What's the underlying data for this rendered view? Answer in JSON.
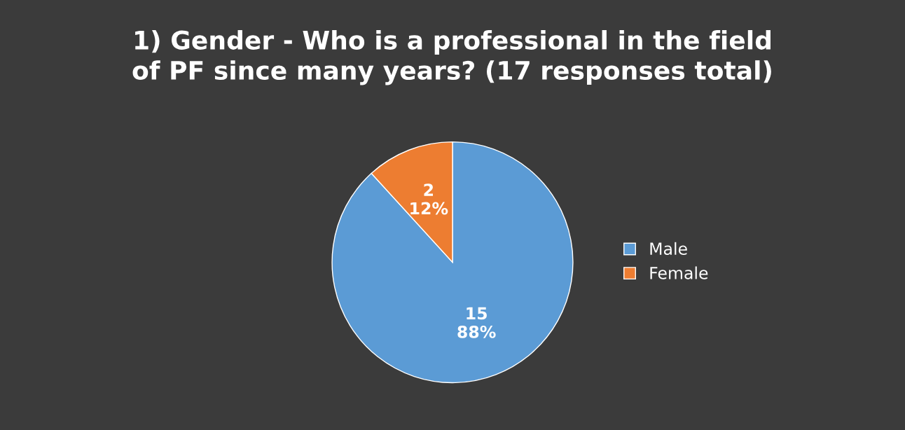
{
  "chart_data": {
    "type": "pie",
    "title": "1) Gender - Who is a professional in the field\nof PF since many years? (17 responses total)",
    "categories": [
      "Male",
      "Female"
    ],
    "values": [
      15,
      2
    ],
    "colors": [
      "#5b9bd5",
      "#ed7d31"
    ],
    "value_labels": [
      "15\n88%",
      "2\n12%"
    ],
    "legend": "right"
  }
}
